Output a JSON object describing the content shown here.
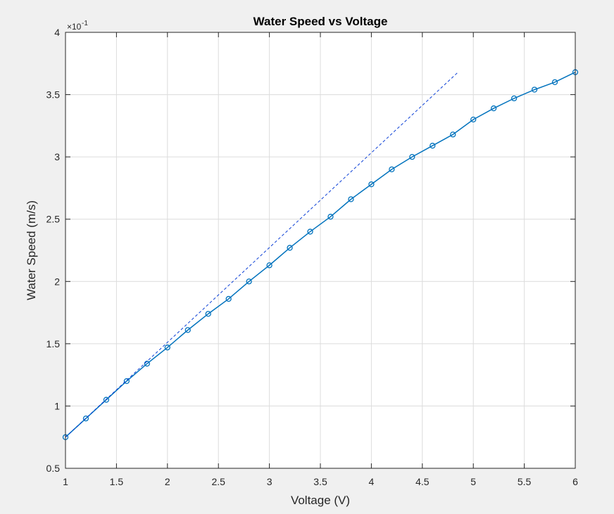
{
  "chart_data": {
    "type": "line",
    "title": "Water Speed vs Voltage",
    "xlabel": "Voltage (V)",
    "ylabel": "Water Speed (m/s)",
    "y_exponent_label": "×10",
    "y_exponent_power": "-1",
    "xlim": [
      1,
      6
    ],
    "ylim": [
      0.5,
      4
    ],
    "xticks": [
      1,
      1.5,
      2,
      2.5,
      3,
      3.5,
      4,
      4.5,
      5,
      5.5,
      6
    ],
    "xtick_labels": [
      "1",
      "1.5",
      "2",
      "2.5",
      "3",
      "3.5",
      "4",
      "4.5",
      "5",
      "5.5",
      "6"
    ],
    "yticks": [
      0.5,
      1,
      1.5,
      2,
      2.5,
      3,
      3.5,
      4
    ],
    "ytick_labels": [
      "0.5",
      "1",
      "1.5",
      "2",
      "2.5",
      "3",
      "3.5",
      "4"
    ],
    "grid": true,
    "series": [
      {
        "style": "solid-line-circle-markers",
        "color": "#0072bd",
        "x": [
          1.0,
          1.2,
          1.4,
          1.6,
          1.8,
          2.0,
          2.2,
          2.4,
          2.6,
          2.8,
          3.0,
          3.2,
          3.4,
          3.6,
          3.8,
          4.0,
          4.2,
          4.4,
          4.6,
          4.8,
          5.0,
          5.2,
          5.4,
          5.6,
          5.8,
          6.0
        ],
        "y": [
          0.75,
          0.9,
          1.05,
          1.2,
          1.34,
          1.47,
          1.61,
          1.74,
          1.86,
          2.0,
          2.13,
          2.27,
          2.4,
          2.52,
          2.66,
          2.78,
          2.9,
          3.0,
          3.09,
          3.18,
          3.3,
          3.39,
          3.47,
          3.54,
          3.6,
          3.68
        ]
      },
      {
        "style": "dashed-line",
        "color": "#0b3fd6",
        "x": [
          1.0,
          4.85
        ],
        "y": [
          0.75,
          3.68
        ]
      }
    ]
  }
}
